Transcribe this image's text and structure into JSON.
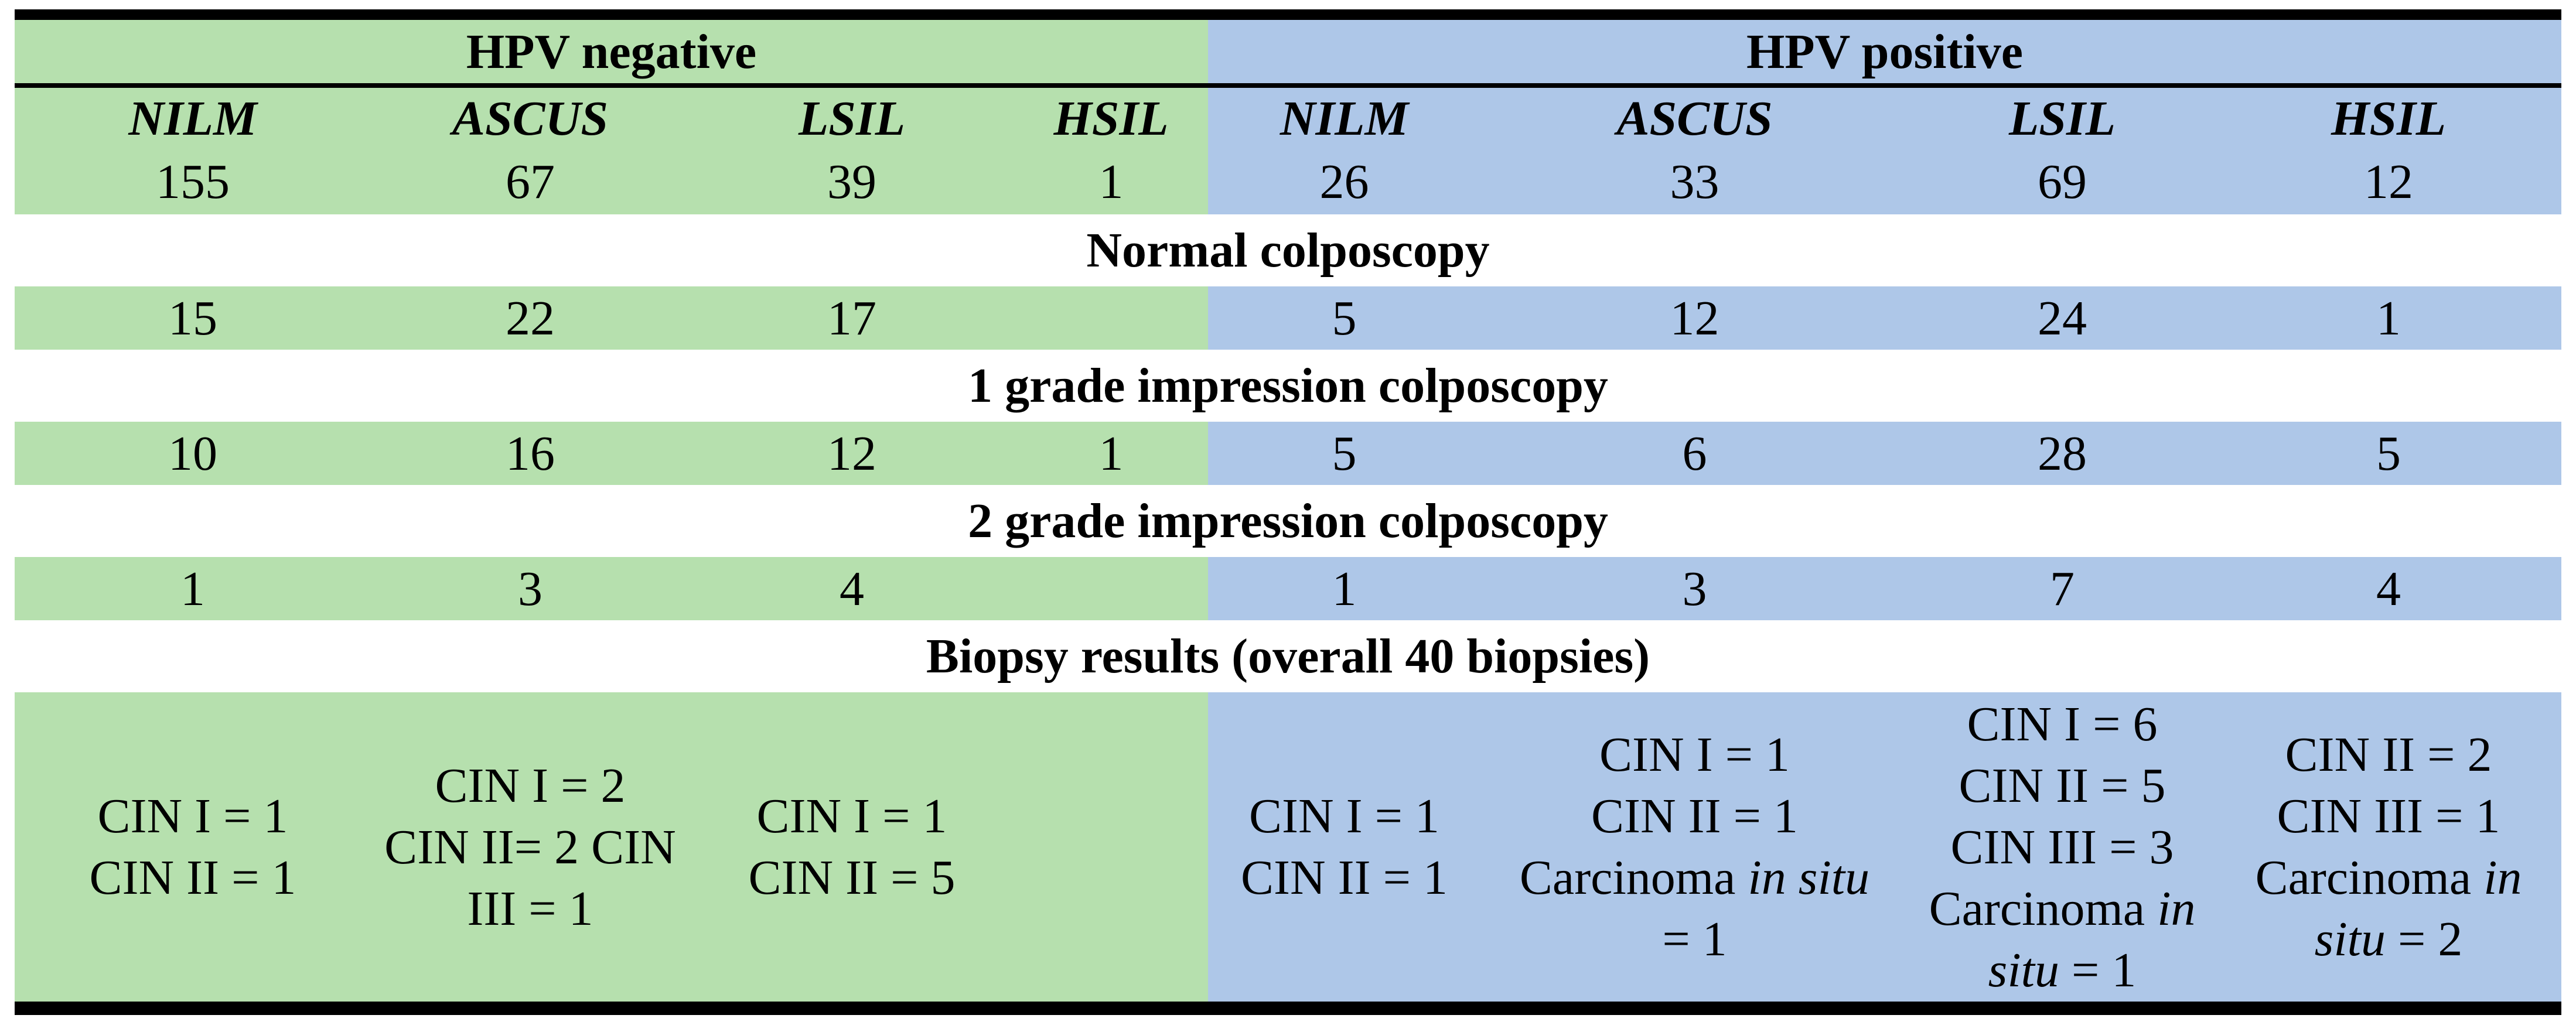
{
  "colors": {
    "hpv_negative_bg": "#b6e0ae",
    "hpv_positive_bg": "#aec7e8",
    "border": "#000000"
  },
  "table": {
    "group_headers": [
      "HPV negative",
      "HPV positive"
    ],
    "column_headers": [
      "NILM",
      "ASCUS",
      "LSIL",
      "HSIL",
      "NILM",
      "ASCUS",
      "LSIL",
      "HSIL"
    ],
    "counts": [
      "155",
      "67",
      "39",
      "1",
      "26",
      "33",
      "69",
      "12"
    ],
    "section_normal": {
      "title": "Normal colposcopy",
      "values": [
        "15",
        "22",
        "17",
        "",
        "5",
        "12",
        "24",
        "1"
      ]
    },
    "section_grade1": {
      "title": "1 grade impression colposcopy",
      "values": [
        "10",
        "16",
        "12",
        "1",
        "5",
        "6",
        "28",
        "5"
      ]
    },
    "section_grade2": {
      "title": "2 grade impression colposcopy",
      "values": [
        "1",
        "3",
        "4",
        "",
        "1",
        "3",
        "7",
        "4"
      ]
    },
    "section_biopsy": {
      "title": "Biopsy results (overall 40 biopsies)",
      "cells": [
        [
          [
            {
              "t": "CIN I = 1"
            }
          ],
          [
            {
              "t": "CIN II = 1"
            }
          ]
        ],
        [
          [
            {
              "t": "CIN I = 2"
            }
          ],
          [
            {
              "t": "CIN II= 2 CIN"
            }
          ],
          [
            {
              "t": "III = 1"
            }
          ]
        ],
        [
          [
            {
              "t": "CIN I = 1"
            }
          ],
          [
            {
              "t": "CIN II = 5"
            }
          ]
        ],
        [],
        [
          [
            {
              "t": "CIN I = 1"
            }
          ],
          [
            {
              "t": "CIN II = 1"
            }
          ]
        ],
        [
          [
            {
              "t": "CIN I = 1"
            }
          ],
          [
            {
              "t": "CIN II = 1"
            }
          ],
          [
            {
              "t": "Carcinoma "
            },
            {
              "t": "in situ",
              "i": true
            }
          ],
          [
            {
              "t": "= 1"
            }
          ]
        ],
        [
          [
            {
              "t": "CIN I = 6"
            }
          ],
          [
            {
              "t": "CIN II = 5"
            }
          ],
          [
            {
              "t": "CIN III = 3"
            }
          ],
          [
            {
              "t": "Carcinoma "
            },
            {
              "t": "in",
              "i": true
            }
          ],
          [
            {
              "t": "situ",
              "i": true
            },
            {
              "t": " = 1"
            }
          ]
        ],
        [
          [
            {
              "t": "CIN II = 2"
            }
          ],
          [
            {
              "t": "CIN III = 1"
            }
          ],
          [
            {
              "t": "Carcinoma "
            },
            {
              "t": "in",
              "i": true
            }
          ],
          [
            {
              "t": "situ",
              "i": true
            },
            {
              "t": " = 2"
            }
          ]
        ]
      ]
    }
  }
}
